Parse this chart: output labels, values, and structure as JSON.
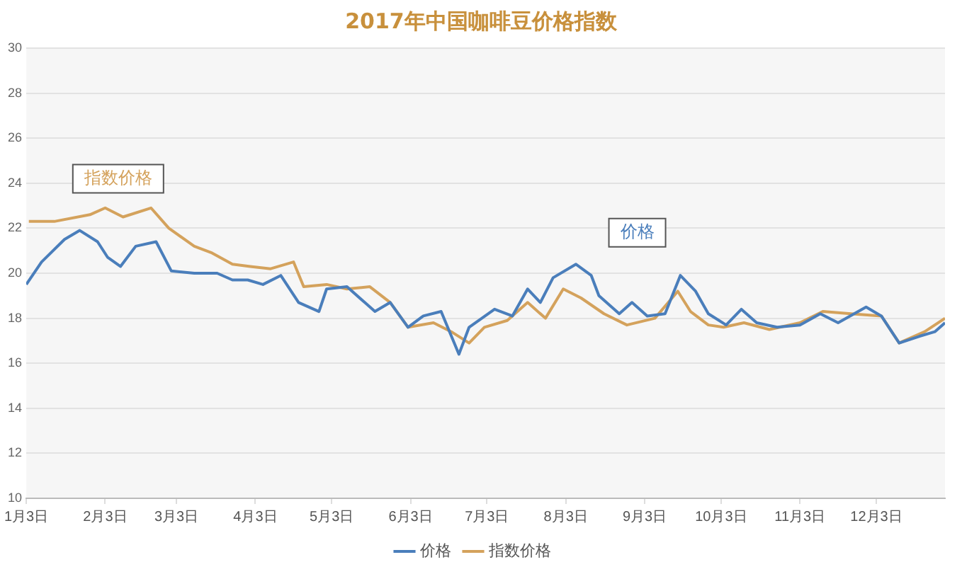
{
  "chart_data": {
    "type": "line",
    "title": "2017年中国咖啡豆价格指数",
    "xlim": [
      "2017-01-03",
      "2017-12-30"
    ],
    "xticks": [
      {
        "value": "2017-01-03",
        "label": "1月3日"
      },
      {
        "value": "2017-02-03",
        "label": "2月3日"
      },
      {
        "value": "2017-03-03",
        "label": "3月3日"
      },
      {
        "value": "2017-04-03",
        "label": "4月3日"
      },
      {
        "value": "2017-05-03",
        "label": "5月3日"
      },
      {
        "value": "2017-06-03",
        "label": "6月3日"
      },
      {
        "value": "2017-07-03",
        "label": "7月3日"
      },
      {
        "value": "2017-08-03",
        "label": "8月3日"
      },
      {
        "value": "2017-09-03",
        "label": "9月3日"
      },
      {
        "value": "2017-10-03",
        "label": "10月3日"
      },
      {
        "value": "2017-11-03",
        "label": "11月3日"
      },
      {
        "value": "2017-12-03",
        "label": "12月3日"
      }
    ],
    "ylim": [
      10,
      30
    ],
    "yticks": [
      10,
      12,
      14,
      16,
      18,
      20,
      22,
      24,
      26,
      28,
      30
    ],
    "grid": "y",
    "legend": "bottom",
    "marker": "none",
    "line_style": "solid",
    "series": [
      {
        "name": "价格",
        "color": "#4a7ebb",
        "x": [
          "2017-01-03",
          "2017-01-09",
          "2017-01-18",
          "2017-01-24",
          "2017-01-31",
          "2017-02-04",
          "2017-02-09",
          "2017-02-15",
          "2017-02-23",
          "2017-03-01",
          "2017-03-10",
          "2017-03-19",
          "2017-03-25",
          "2017-03-31",
          "2017-04-06",
          "2017-04-13",
          "2017-04-20",
          "2017-04-28",
          "2017-05-01",
          "2017-05-09",
          "2017-05-16",
          "2017-05-20",
          "2017-05-26",
          "2017-06-02",
          "2017-06-08",
          "2017-06-15",
          "2017-06-22",
          "2017-06-26",
          "2017-07-06",
          "2017-07-13",
          "2017-07-19",
          "2017-07-24",
          "2017-07-29",
          "2017-08-07",
          "2017-08-13",
          "2017-08-16",
          "2017-08-24",
          "2017-08-29",
          "2017-09-04",
          "2017-09-11",
          "2017-09-17",
          "2017-09-23",
          "2017-09-28",
          "2017-10-05",
          "2017-10-11",
          "2017-10-17",
          "2017-10-25",
          "2017-11-03",
          "2017-11-11",
          "2017-11-18",
          "2017-11-29",
          "2017-12-05",
          "2017-12-12",
          "2017-12-20",
          "2017-12-26",
          "2017-12-30"
        ],
        "values": [
          19.5,
          20.5,
          21.5,
          21.9,
          21.4,
          20.7,
          20.3,
          21.2,
          21.4,
          20.1,
          20.0,
          20.0,
          19.7,
          19.7,
          19.5,
          19.9,
          18.7,
          18.3,
          19.3,
          19.4,
          18.7,
          18.3,
          18.7,
          17.6,
          18.1,
          18.3,
          16.4,
          17.6,
          18.4,
          18.1,
          19.3,
          18.7,
          19.8,
          20.4,
          19.9,
          19.0,
          18.2,
          18.7,
          18.1,
          18.2,
          19.9,
          19.2,
          18.2,
          17.7,
          18.4,
          17.8,
          17.6,
          17.7,
          18.2,
          17.8,
          18.5,
          18.1,
          16.9,
          17.2,
          17.4,
          17.8
        ]
      },
      {
        "name": "指数价格",
        "color": "#d4a25c",
        "x": [
          "2017-01-04",
          "2017-01-14",
          "2017-01-28",
          "2017-02-03",
          "2017-02-10",
          "2017-02-21",
          "2017-02-28",
          "2017-03-10",
          "2017-03-17",
          "2017-03-25",
          "2017-04-01",
          "2017-04-09",
          "2017-04-18",
          "2017-04-22",
          "2017-05-01",
          "2017-05-09",
          "2017-05-18",
          "2017-05-26",
          "2017-06-02",
          "2017-06-12",
          "2017-06-19",
          "2017-06-26",
          "2017-07-02",
          "2017-07-11",
          "2017-07-19",
          "2017-07-26",
          "2017-08-02",
          "2017-08-09",
          "2017-08-18",
          "2017-08-27",
          "2017-09-07",
          "2017-09-16",
          "2017-09-21",
          "2017-09-28",
          "2017-10-04",
          "2017-10-12",
          "2017-10-22",
          "2017-11-03",
          "2017-11-12",
          "2017-11-23",
          "2017-12-05",
          "2017-12-12",
          "2017-12-22",
          "2017-12-30"
        ],
        "values": [
          22.3,
          22.3,
          22.6,
          22.9,
          22.5,
          22.9,
          22.0,
          21.2,
          20.9,
          20.4,
          20.3,
          20.2,
          20.5,
          19.4,
          19.5,
          19.3,
          19.4,
          18.7,
          17.6,
          17.8,
          17.4,
          16.9,
          17.6,
          17.9,
          18.7,
          18.0,
          19.3,
          18.9,
          18.2,
          17.7,
          18.0,
          19.2,
          18.3,
          17.7,
          17.6,
          17.8,
          17.5,
          17.8,
          18.3,
          18.2,
          18.1,
          16.9,
          17.4,
          18.0
        ]
      }
    ],
    "annotations": [
      "指数价格",
      "价格"
    ]
  }
}
